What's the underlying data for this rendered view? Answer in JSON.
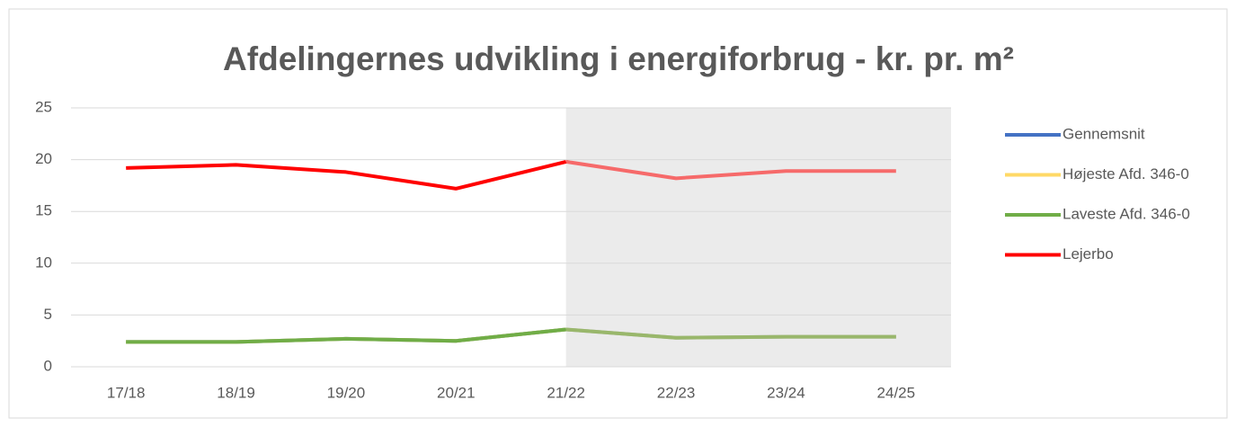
{
  "chart_data": {
    "type": "line",
    "title": "Afdelingernes udvikling i energiforbrug - kr. pr. m²",
    "categories": [
      "17/18",
      "18/19",
      "19/20",
      "20/21",
      "21/22",
      "22/23",
      "23/24",
      "24/25"
    ],
    "series": [
      {
        "name": "Gennemsnit",
        "color": "#4472c4",
        "values": [
          2.4,
          2.4,
          2.7,
          2.5,
          3.6,
          2.8,
          2.9,
          2.9
        ]
      },
      {
        "name": "Højeste Afd. 346-0",
        "color": "#ffd966",
        "values": [
          2.4,
          2.4,
          2.7,
          2.5,
          3.6,
          2.8,
          2.9,
          2.9
        ]
      },
      {
        "name": "Laveste Afd. 346-0",
        "color": "#70ad47",
        "values": [
          2.4,
          2.4,
          2.7,
          2.5,
          3.6,
          2.8,
          2.9,
          2.9
        ]
      },
      {
        "name": "Lejerbo",
        "color": "#ff0000",
        "values": [
          19.2,
          19.5,
          18.8,
          17.2,
          19.8,
          18.2,
          18.9,
          18.9
        ]
      }
    ],
    "ylim": [
      0,
      25
    ],
    "yticks": [
      0,
      5,
      10,
      15,
      20,
      25
    ],
    "grid": true,
    "shaded_from": 4,
    "legend": "right"
  }
}
